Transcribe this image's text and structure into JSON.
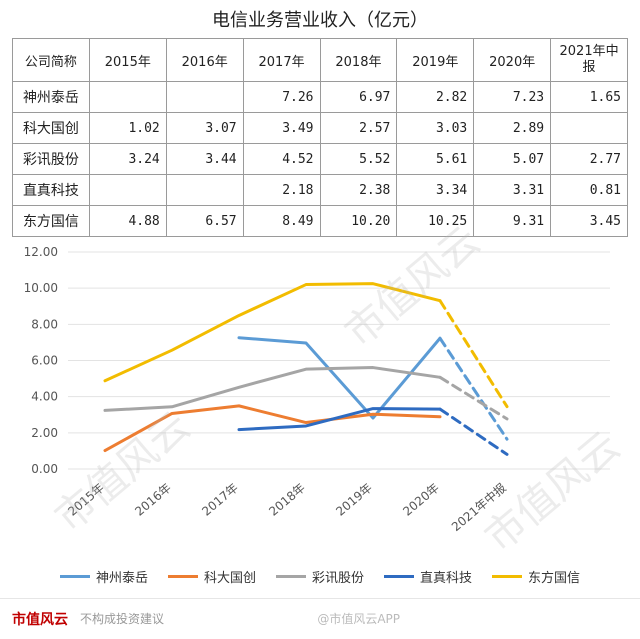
{
  "title": "电信业务营业收入（亿元）",
  "table": {
    "headers": [
      "公司简称",
      "2015年",
      "2016年",
      "2017年",
      "2018年",
      "2019年",
      "2020年",
      "2021年中报"
    ],
    "rows": [
      {
        "name": "神州泰岳",
        "cells": [
          "",
          "",
          "7.26",
          "6.97",
          "2.82",
          "7.23",
          "1.65"
        ]
      },
      {
        "name": "科大国创",
        "cells": [
          "1.02",
          "3.07",
          "3.49",
          "2.57",
          "3.03",
          "2.89",
          ""
        ]
      },
      {
        "name": "彩讯股份",
        "cells": [
          "3.24",
          "3.44",
          "4.52",
          "5.52",
          "5.61",
          "5.07",
          "2.77"
        ]
      },
      {
        "name": "直真科技",
        "cells": [
          "",
          "",
          "2.18",
          "2.38",
          "3.34",
          "3.31",
          "0.81"
        ]
      },
      {
        "name": "东方国信",
        "cells": [
          "4.88",
          "6.57",
          "8.49",
          "10.20",
          "10.25",
          "9.31",
          "3.45"
        ]
      }
    ]
  },
  "chart_data": {
    "type": "line",
    "categories": [
      "2015年",
      "2016年",
      "2017年",
      "2018年",
      "2019年",
      "2020年",
      "2021年中报"
    ],
    "ylim": [
      0,
      12
    ],
    "ytick_labels": [
      "0.00",
      "2.00",
      "4.00",
      "6.00",
      "8.00",
      "10.00",
      "12.00"
    ],
    "grid": true,
    "legend_position": "bottom",
    "dashed_last_segment": true,
    "series": [
      {
        "name": "神州泰岳",
        "color": "#5b9bd5",
        "values": [
          null,
          null,
          7.26,
          6.97,
          2.82,
          7.23,
          1.65
        ]
      },
      {
        "name": "科大国创",
        "color": "#ed7d31",
        "values": [
          1.02,
          3.07,
          3.49,
          2.57,
          3.03,
          2.89,
          null
        ]
      },
      {
        "name": "彩讯股份",
        "color": "#a5a5a5",
        "values": [
          3.24,
          3.44,
          4.52,
          5.52,
          5.61,
          5.07,
          2.77
        ]
      },
      {
        "name": "直真科技",
        "color": "#2e6bc1",
        "values": [
          null,
          null,
          2.18,
          2.38,
          3.34,
          3.31,
          0.81
        ]
      },
      {
        "name": "东方国信",
        "color": "#f2bc00",
        "values": [
          4.88,
          6.57,
          8.49,
          10.2,
          10.25,
          9.31,
          3.45
        ]
      }
    ]
  },
  "footer": {
    "brand": "市值风云",
    "sub": "不构成投资建议",
    "note": "@市值风云APP"
  },
  "watermark_text": "市值风云"
}
